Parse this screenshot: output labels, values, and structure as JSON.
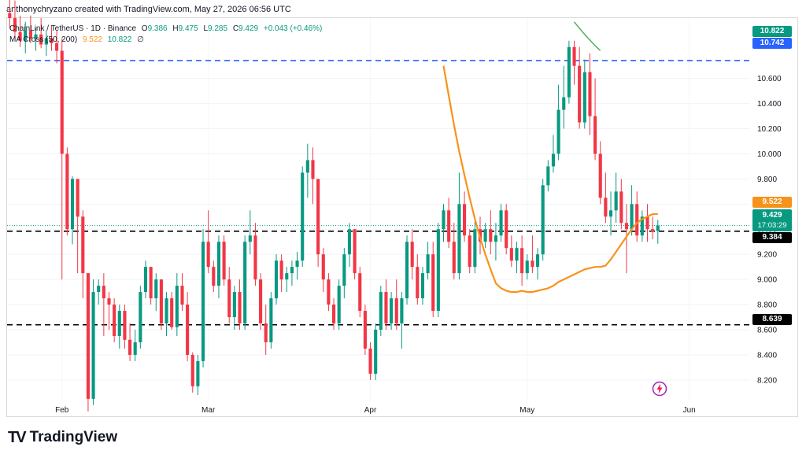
{
  "header": {
    "credit": "anthonychryzano created with TradingView.com, May 27, 2026 06:56 UTC"
  },
  "legend": {
    "symbol": "ChainLink / TetherUS · 1D · Binance",
    "o_key": "O",
    "o_val": "9.386",
    "h_key": "H",
    "h_val": "9.475",
    "l_key": "L",
    "l_val": "9.285",
    "c_key": "C",
    "c_val": "9.429",
    "change": "+0.043 (+0.46%)",
    "ma_label": "MA Cross (50, 200)",
    "ma_fast_val": "9.522",
    "ma_slow_val": "10.822",
    "ma_extra": "∅"
  },
  "price_tags": {
    "p10822": "10.822",
    "p10742": "10.742",
    "p9522": "9.522",
    "p9429": "9.429",
    "countdown": "17:03:29",
    "p9384": "9.384",
    "p8639": "8.639"
  },
  "colors": {
    "up": "#089981",
    "down": "#f23645",
    "ma_fast": "#f7931a",
    "ma_slow": "#4caf50",
    "blue_line": "#2962ff",
    "black_line": "#000000",
    "ma_tag": "#f7931a",
    "price_tag": "#089981"
  },
  "footer": {
    "brand": "TradingView"
  },
  "icons": {
    "alert": "lightning-alert-icon",
    "logo": "tradingview-logo-icon"
  },
  "chart_data": {
    "type": "candlestick",
    "pair": "LINK/USDT",
    "timeframe": "1D",
    "y_ticks": [
      8.2,
      8.4,
      8.6,
      8.8,
      9.0,
      9.2,
      9.4,
      9.6,
      9.8,
      10.0,
      10.2,
      10.4,
      10.6
    ],
    "y_tick_labels": [
      "8.200",
      "8.400",
      "8.600",
      "8.800",
      "9.000",
      "9.200",
      "9.400",
      "9.600",
      "9.800",
      "10.000",
      "10.200",
      "10.400",
      "10.600"
    ],
    "x_tick_labels": [
      {
        "label": "Feb",
        "index": 10
      },
      {
        "label": "Mar",
        "index": 38
      },
      {
        "label": "Apr",
        "index": 69
      },
      {
        "label": "May",
        "index": 99
      },
      {
        "label": "Jun",
        "index": 130
      }
    ],
    "y_range": [
      8.03,
      11.08
    ],
    "index_range": [
      -0.5,
      141.5
    ],
    "horizontal_lines": [
      {
        "price": 10.742,
        "style": "dashed",
        "color": "#2962ff"
      },
      {
        "price": 9.384,
        "style": "dashed",
        "color": "#000000"
      },
      {
        "price": 8.639,
        "style": "dashed",
        "color": "#000000"
      }
    ],
    "candles": [
      [
        11.12,
        11.3,
        11.0,
        11.08
      ],
      [
        11.08,
        11.22,
        10.92,
        10.97
      ],
      [
        10.97,
        11.1,
        10.85,
        10.9
      ],
      [
        10.9,
        11.05,
        10.8,
        10.98
      ],
      [
        10.98,
        11.1,
        10.88,
        10.92
      ],
      [
        10.92,
        11.0,
        10.82,
        10.95
      ],
      [
        10.95,
        11.08,
        10.84,
        10.87
      ],
      [
        10.87,
        10.98,
        10.78,
        10.92
      ],
      [
        10.92,
        11.02,
        10.82,
        10.88
      ],
      [
        10.88,
        10.98,
        10.72,
        10.82
      ],
      [
        10.82,
        10.92,
        9.0,
        10.0
      ],
      [
        10.0,
        10.05,
        9.35,
        9.4
      ],
      [
        9.4,
        9.82,
        9.28,
        9.8
      ],
      [
        9.8,
        9.8,
        9.05,
        9.5
      ],
      [
        9.5,
        9.55,
        8.85,
        9.05
      ],
      [
        9.05,
        9.05,
        7.95,
        8.05
      ],
      [
        8.05,
        9.0,
        8.0,
        8.9
      ],
      [
        8.9,
        9.0,
        8.8,
        8.95
      ],
      [
        8.95,
        9.05,
        8.55,
        8.85
      ],
      [
        8.85,
        8.9,
        8.6,
        8.8
      ],
      [
        8.8,
        8.85,
        8.5,
        8.55
      ],
      [
        8.55,
        8.8,
        8.45,
        8.75
      ],
      [
        8.75,
        8.8,
        8.45,
        8.52
      ],
      [
        8.52,
        8.65,
        8.35,
        8.4
      ],
      [
        8.4,
        8.6,
        8.35,
        8.5
      ],
      [
        8.5,
        8.95,
        8.45,
        8.9
      ],
      [
        8.9,
        9.15,
        8.85,
        9.1
      ],
      [
        9.1,
        9.1,
        8.8,
        8.85
      ],
      [
        8.85,
        9.05,
        8.75,
        9.0
      ],
      [
        9.0,
        9.0,
        8.6,
        8.65
      ],
      [
        8.65,
        8.9,
        8.55,
        8.85
      ],
      [
        8.85,
        8.9,
        8.6,
        8.62
      ],
      [
        8.62,
        9.05,
        8.55,
        8.95
      ],
      [
        8.95,
        9.05,
        8.75,
        8.8
      ],
      [
        8.8,
        8.9,
        8.35,
        8.4
      ],
      [
        8.4,
        8.42,
        8.1,
        8.15
      ],
      [
        8.15,
        8.4,
        8.08,
        8.35
      ],
      [
        8.35,
        9.4,
        8.3,
        9.3
      ],
      [
        9.3,
        9.55,
        9.05,
        9.1
      ],
      [
        9.1,
        9.15,
        8.9,
        8.95
      ],
      [
        8.95,
        9.35,
        8.85,
        9.3
      ],
      [
        9.3,
        9.35,
        8.95,
        9.0
      ],
      [
        9.0,
        9.1,
        8.65,
        8.7
      ],
      [
        8.7,
        8.95,
        8.6,
        8.9
      ],
      [
        8.9,
        9.0,
        8.6,
        8.65
      ],
      [
        8.65,
        9.35,
        8.6,
        9.3
      ],
      [
        9.3,
        9.55,
        9.2,
        9.35
      ],
      [
        9.35,
        9.45,
        8.95,
        9.0
      ],
      [
        9.0,
        9.05,
        8.6,
        8.65
      ],
      [
        8.65,
        8.8,
        8.4,
        8.5
      ],
      [
        8.5,
        8.9,
        8.45,
        8.85
      ],
      [
        8.85,
        9.2,
        8.8,
        9.15
      ],
      [
        9.15,
        9.2,
        8.9,
        9.0
      ],
      [
        9.0,
        9.1,
        8.9,
        9.05
      ],
      [
        9.05,
        9.15,
        8.95,
        9.1
      ],
      [
        9.1,
        9.22,
        9.0,
        9.15
      ],
      [
        9.15,
        9.9,
        9.1,
        9.85
      ],
      [
        9.85,
        10.08,
        9.65,
        9.95
      ],
      [
        9.95,
        10.05,
        9.6,
        9.8
      ],
      [
        9.8,
        9.8,
        9.1,
        9.2
      ],
      [
        9.2,
        9.25,
        8.9,
        9.0
      ],
      [
        9.0,
        9.05,
        8.75,
        8.8
      ],
      [
        8.8,
        8.85,
        8.6,
        8.65
      ],
      [
        8.65,
        9.0,
        8.6,
        8.95
      ],
      [
        8.95,
        9.25,
        8.85,
        9.2
      ],
      [
        9.2,
        9.45,
        9.1,
        9.4
      ],
      [
        9.4,
        9.4,
        9.0,
        9.05
      ],
      [
        9.05,
        9.1,
        8.7,
        8.75
      ],
      [
        8.75,
        8.8,
        8.4,
        8.45
      ],
      [
        8.45,
        8.5,
        8.2,
        8.25
      ],
      [
        8.25,
        8.65,
        8.2,
        8.6
      ],
      [
        8.6,
        8.95,
        8.55,
        8.9
      ],
      [
        8.9,
        9.0,
        8.6,
        8.65
      ],
      [
        8.65,
        8.9,
        8.6,
        8.85
      ],
      [
        8.85,
        9.0,
        8.6,
        8.65
      ],
      [
        8.65,
        8.9,
        8.45,
        8.85
      ],
      [
        8.85,
        9.35,
        8.8,
        9.3
      ],
      [
        9.3,
        9.4,
        9.0,
        9.1
      ],
      [
        9.1,
        9.2,
        8.8,
        8.85
      ],
      [
        8.85,
        9.1,
        8.8,
        9.05
      ],
      [
        9.05,
        9.3,
        9.0,
        9.2
      ],
      [
        9.2,
        9.3,
        8.7,
        8.75
      ],
      [
        8.75,
        9.45,
        8.7,
        9.4
      ],
      [
        9.4,
        9.6,
        9.3,
        9.55
      ],
      [
        9.55,
        9.65,
        9.25,
        9.3
      ],
      [
        9.3,
        9.45,
        9.0,
        9.05
      ],
      [
        9.05,
        9.85,
        9.0,
        9.6
      ],
      [
        9.6,
        9.7,
        9.3,
        9.35
      ],
      [
        9.35,
        9.4,
        9.05,
        9.1
      ],
      [
        9.1,
        9.5,
        9.05,
        9.4
      ],
      [
        9.4,
        9.5,
        9.2,
        9.3
      ],
      [
        9.3,
        9.45,
        9.25,
        9.4
      ],
      [
        9.4,
        9.55,
        9.2,
        9.3
      ],
      [
        9.3,
        9.45,
        9.15,
        9.35
      ],
      [
        9.35,
        9.6,
        9.3,
        9.55
      ],
      [
        9.55,
        9.6,
        9.2,
        9.25
      ],
      [
        9.25,
        9.35,
        9.1,
        9.15
      ],
      [
        9.15,
        9.3,
        9.05,
        9.25
      ],
      [
        9.25,
        9.35,
        8.95,
        9.05
      ],
      [
        9.05,
        9.2,
        9.0,
        9.15
      ],
      [
        9.15,
        9.35,
        9.05,
        9.1
      ],
      [
        9.1,
        9.25,
        9.0,
        9.2
      ],
      [
        9.2,
        9.8,
        9.15,
        9.75
      ],
      [
        9.75,
        9.95,
        9.7,
        9.9
      ],
      [
        9.9,
        10.15,
        9.85,
        10.0
      ],
      [
        10.0,
        10.55,
        9.95,
        10.35
      ],
      [
        10.35,
        10.7,
        10.2,
        10.45
      ],
      [
        10.45,
        10.9,
        10.4,
        10.85
      ],
      [
        10.85,
        10.9,
        10.55,
        10.7
      ],
      [
        10.7,
        10.85,
        10.2,
        10.25
      ],
      [
        10.25,
        10.75,
        10.2,
        10.65
      ],
      [
        10.65,
        10.8,
        10.15,
        10.3
      ],
      [
        10.3,
        10.6,
        9.95,
        10.0
      ],
      [
        10.0,
        10.1,
        9.6,
        9.65
      ],
      [
        9.65,
        9.85,
        9.45,
        9.5
      ],
      [
        9.5,
        9.7,
        9.35,
        9.55
      ],
      [
        9.55,
        9.85,
        9.45,
        9.7
      ],
      [
        9.7,
        9.8,
        9.4,
        9.45
      ],
      [
        9.45,
        9.6,
        9.05,
        9.4
      ],
      [
        9.4,
        9.75,
        9.35,
        9.6
      ],
      [
        9.6,
        9.7,
        9.3,
        9.35
      ],
      [
        9.35,
        9.55,
        9.3,
        9.5
      ],
      [
        9.5,
        9.6,
        9.3,
        9.4
      ],
      [
        9.4,
        9.5,
        9.32,
        9.38
      ],
      [
        9.386,
        9.475,
        9.285,
        9.429
      ]
    ],
    "ma_fast": [
      [
        83,
        10.7
      ],
      [
        84,
        10.46
      ],
      [
        85,
        10.23
      ],
      [
        86,
        10.02
      ],
      [
        87,
        9.83
      ],
      [
        88,
        9.65
      ],
      [
        89,
        9.48
      ],
      [
        90,
        9.33
      ],
      [
        91,
        9.2
      ],
      [
        92,
        9.08
      ],
      [
        93,
        8.97
      ],
      [
        94,
        8.93
      ],
      [
        95,
        8.91
      ],
      [
        96,
        8.9
      ],
      [
        97,
        8.9
      ],
      [
        98,
        8.91
      ],
      [
        99,
        8.9
      ],
      [
        100,
        8.9
      ],
      [
        101,
        8.91
      ],
      [
        102,
        8.92
      ],
      [
        103,
        8.93
      ],
      [
        104,
        8.95
      ],
      [
        105,
        8.98
      ],
      [
        106,
        9.0
      ],
      [
        107,
        9.02
      ],
      [
        108,
        9.04
      ],
      [
        109,
        9.06
      ],
      [
        110,
        9.08
      ],
      [
        111,
        9.09
      ],
      [
        112,
        9.1
      ],
      [
        113,
        9.1
      ],
      [
        114,
        9.11
      ],
      [
        115,
        9.16
      ],
      [
        116,
        9.22
      ],
      [
        117,
        9.28
      ],
      [
        118,
        9.34
      ],
      [
        119,
        9.4
      ],
      [
        120,
        9.45
      ],
      [
        121,
        9.48
      ],
      [
        122,
        9.5
      ],
      [
        123,
        9.52
      ],
      [
        124,
        9.522
      ]
    ],
    "ma_slow": [
      [
        108,
        11.05
      ],
      [
        110,
        10.95
      ],
      [
        112,
        10.86
      ],
      [
        113,
        10.822
      ]
    ]
  }
}
